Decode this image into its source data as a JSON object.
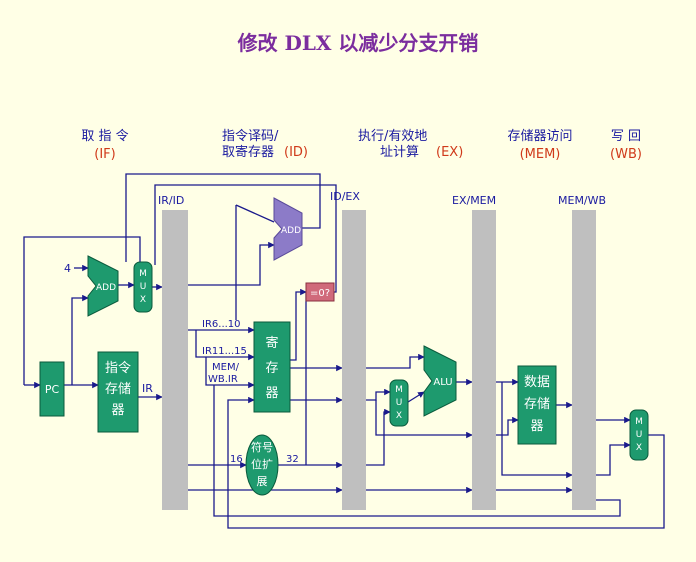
{
  "title": "修改 DLX 以减少分支开销",
  "stages": [
    {
      "line1": "取 指 令",
      "line2": "(IF)"
    },
    {
      "line1": "指令译码/",
      "line2": "取寄存器",
      "suffix": "(ID)"
    },
    {
      "line1": "执行/有效地",
      "line2": "址计算",
      "suffix": "(EX)"
    },
    {
      "line1": "存储器访问",
      "line2": "(MEM)"
    },
    {
      "line1": "写 回",
      "line2": "(WB)"
    }
  ],
  "pipeline_registers": [
    "IR/ID",
    "ID/EX",
    "EX/MEM",
    "MEM/WB"
  ],
  "blocks": {
    "pc": "PC",
    "instr_mem": [
      "指令",
      "存储",
      "器"
    ],
    "regfile": [
      "寄",
      "存",
      "器"
    ],
    "sign_ext": [
      "符号",
      "位扩",
      "展"
    ],
    "data_mem": [
      "数据",
      "存储",
      "器"
    ],
    "alu": "ALU",
    "add_if": "ADD",
    "add_id": "ADD",
    "zero_test": "=0?",
    "mux": [
      "M",
      "U",
      "X"
    ]
  },
  "labels": {
    "four": "4",
    "ir": "IR",
    "ir_6_10": "IR6...10",
    "ir_11_15": "IR11...15",
    "mem_wb_ir_1": "MEM/",
    "mem_wb_ir_2": "WB.IR",
    "bits_16": "16",
    "bits_32": "32"
  },
  "colors": {
    "background": "#FFFFE6",
    "block_fill": "#1E9A6E",
    "block_stroke": "#0A5A3C",
    "pipe_reg": "#BFBFBF",
    "wire": "#1A1A8C",
    "title": "#7B2D9E",
    "stage_text": "#1A1AA0",
    "stage_tag": "#D03A1A",
    "zero_fill": "#D06A7A",
    "add_id_fill": "#8C7BC8"
  }
}
